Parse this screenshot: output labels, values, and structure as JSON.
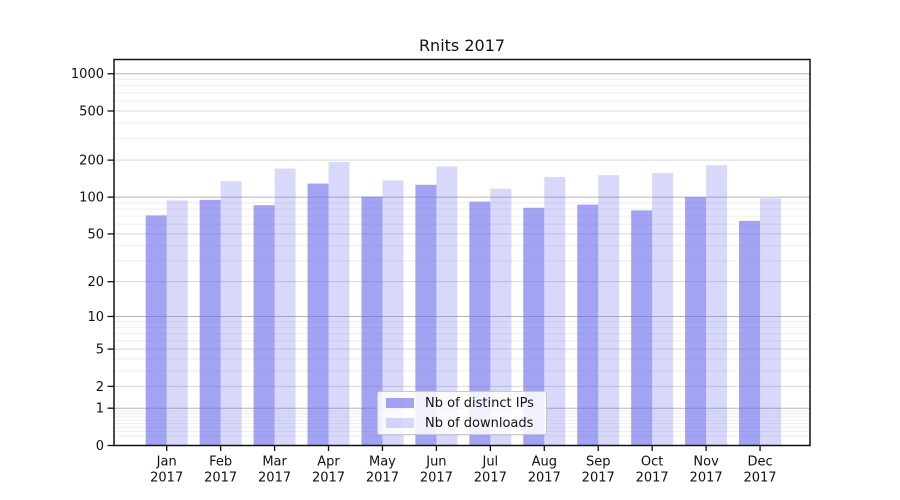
{
  "chart_data": {
    "type": "bar",
    "title": "Rnits 2017",
    "categories": [
      "Jan 2017",
      "Feb 2017",
      "Mar 2017",
      "Apr 2017",
      "May 2017",
      "Jun 2017",
      "Jul 2017",
      "Aug 2017",
      "Sep 2017",
      "Oct 2017",
      "Nov 2017",
      "Dec 2017"
    ],
    "series": [
      {
        "name": "Nb of distinct IPs",
        "base_color": "#6a6aee",
        "alpha": 0.62,
        "values": [
          71,
          95,
          86,
          129,
          101,
          126,
          92,
          82,
          87,
          78,
          100,
          64
        ]
      },
      {
        "name": "Nb of downloads",
        "base_color": "#6a6aee",
        "alpha": 0.26,
        "values": [
          94,
          135,
          171,
          193,
          137,
          178,
          117,
          146,
          151,
          157,
          182,
          98
        ]
      }
    ],
    "yscale": "log10(1+v)",
    "yticks": [
      0,
      1,
      2,
      5,
      10,
      20,
      50,
      100,
      200,
      500,
      1000
    ],
    "minor_yticks": [
      0.2,
      0.3,
      0.4,
      0.5,
      0.6,
      0.7,
      0.8,
      0.9,
      3,
      4,
      6,
      7,
      8,
      9,
      30,
      40,
      60,
      70,
      80,
      90,
      300,
      400,
      600,
      700,
      800,
      900
    ],
    "ylim": [
      0,
      1300
    ],
    "grid": true,
    "legend_position": "lower center",
    "colors": {
      "bar_dark": "#a3a3f5",
      "bar_light": "#d8d8fb",
      "grid_decade": "#b5b5b5",
      "grid_major": "#d8d8d8",
      "grid_minor": "#eeeeee",
      "spine": "#111111"
    }
  }
}
